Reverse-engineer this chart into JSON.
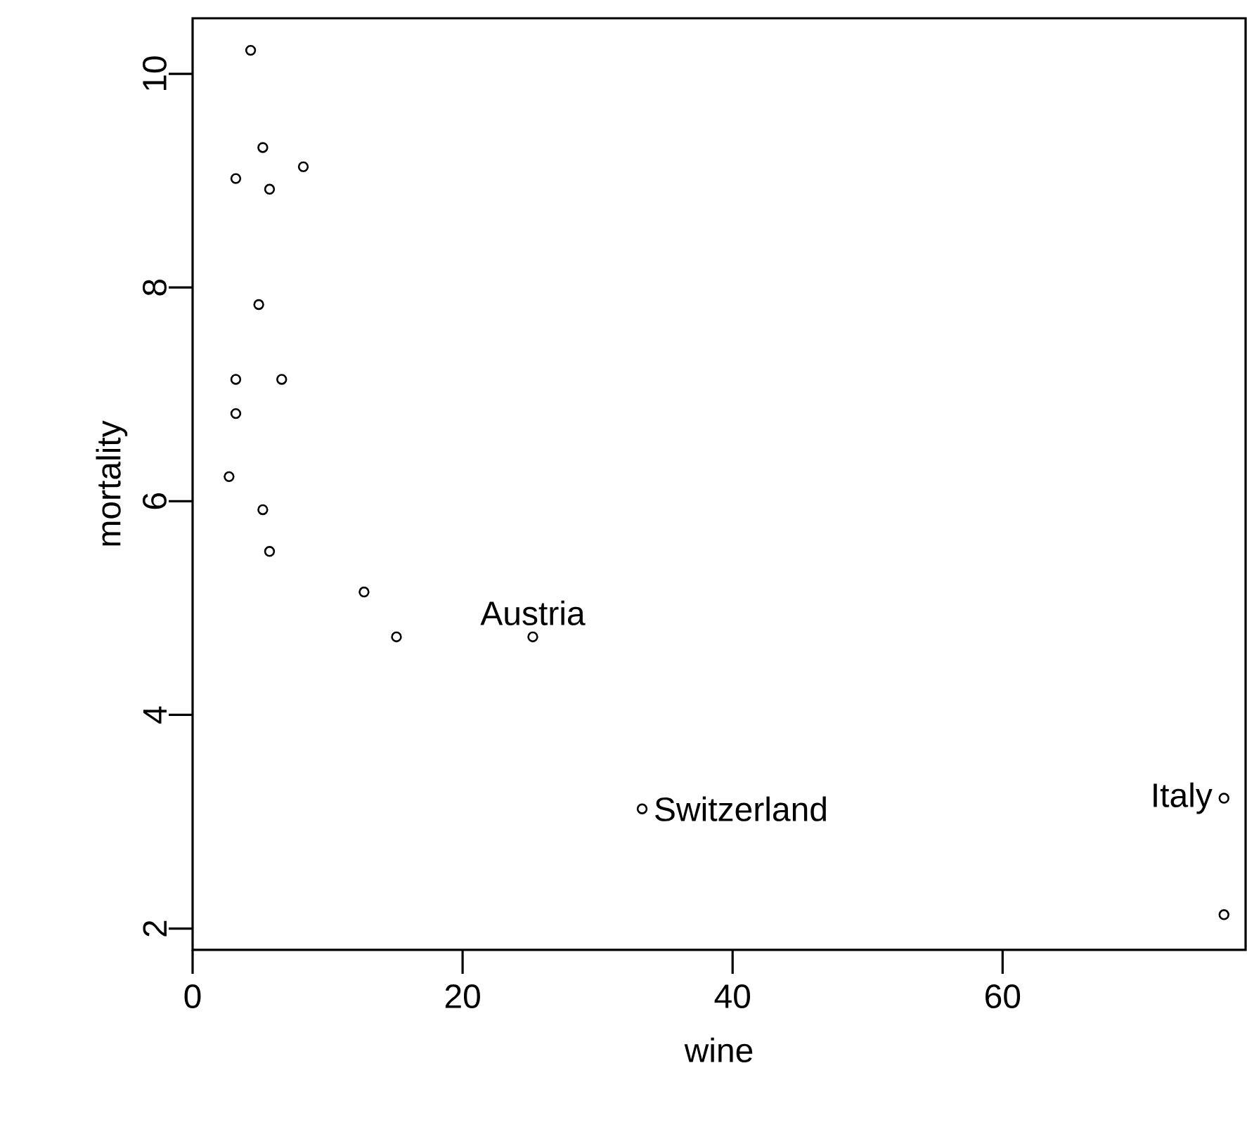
{
  "chart_data": {
    "type": "scatter",
    "xlabel": "wine",
    "ylabel": "mortality",
    "x": [
      4.3,
      5.2,
      8.2,
      3.2,
      5.7,
      4.9,
      3.2,
      6.6,
      3.2,
      2.7,
      5.2,
      5.7,
      12.7,
      15.1,
      25.2,
      33.3,
      76.4,
      76.4
    ],
    "values": [
      10.22,
      9.31,
      9.13,
      9.02,
      8.92,
      7.84,
      7.14,
      7.14,
      6.82,
      6.23,
      5.92,
      5.53,
      5.15,
      4.73,
      4.73,
      3.12,
      3.22,
      2.13
    ],
    "color": "#000000",
    "marker": "circle",
    "xlim": [
      0,
      78
    ],
    "ylim": [
      1.8,
      10.52
    ],
    "xticks": [
      0,
      20,
      40,
      60
    ],
    "yticks": [
      2,
      4,
      6,
      8,
      10
    ],
    "annotations": [
      {
        "text": "Austria",
        "x": 25.2,
        "y": 4.73
      },
      {
        "text": "Switzerland",
        "x": 33.3,
        "y": 3.12
      },
      {
        "text": "Italy",
        "x": 76.4,
        "y": 3.22
      }
    ]
  }
}
